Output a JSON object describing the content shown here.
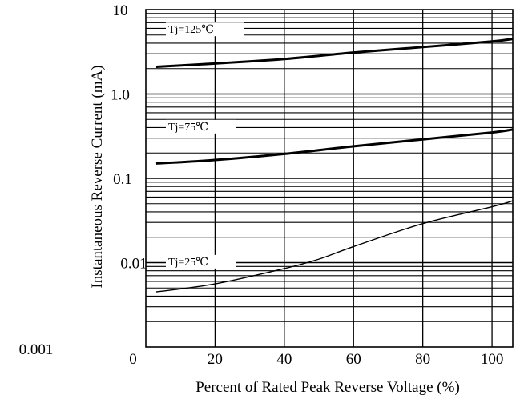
{
  "chart_data": {
    "type": "line",
    "title": "",
    "xlabel": "Percent of Rated Peak Reverse Voltage (%)",
    "ylabel": "Instantaneous Reverse Current (mA)",
    "xlim": [
      0,
      106
    ],
    "ylim": [
      0.001,
      10
    ],
    "y_scale": "log",
    "grid": true,
    "x_ticks": [
      "0",
      "20",
      "40",
      "60",
      "80",
      "100"
    ],
    "y_ticks": [
      "10",
      "1.0",
      "0.1",
      "0.01",
      "0.001"
    ],
    "series": [
      {
        "name": "Tj=125℃",
        "x": [
          3,
          20,
          40,
          60,
          80,
          100,
          106
        ],
        "y": [
          2.1,
          2.3,
          2.6,
          3.1,
          3.6,
          4.2,
          4.5
        ],
        "line_weight": "thick"
      },
      {
        "name": "Tj=75℃",
        "x": [
          3,
          20,
          40,
          60,
          80,
          100,
          106
        ],
        "y": [
          0.15,
          0.165,
          0.195,
          0.24,
          0.29,
          0.35,
          0.38
        ],
        "line_weight": "thick"
      },
      {
        "name": "Tj=25℃",
        "x": [
          3,
          20,
          40,
          50,
          60,
          80,
          100,
          106
        ],
        "y": [
          0.0045,
          0.0056,
          0.0085,
          0.011,
          0.0155,
          0.029,
          0.046,
          0.054
        ],
        "line_weight": "thin"
      }
    ]
  }
}
